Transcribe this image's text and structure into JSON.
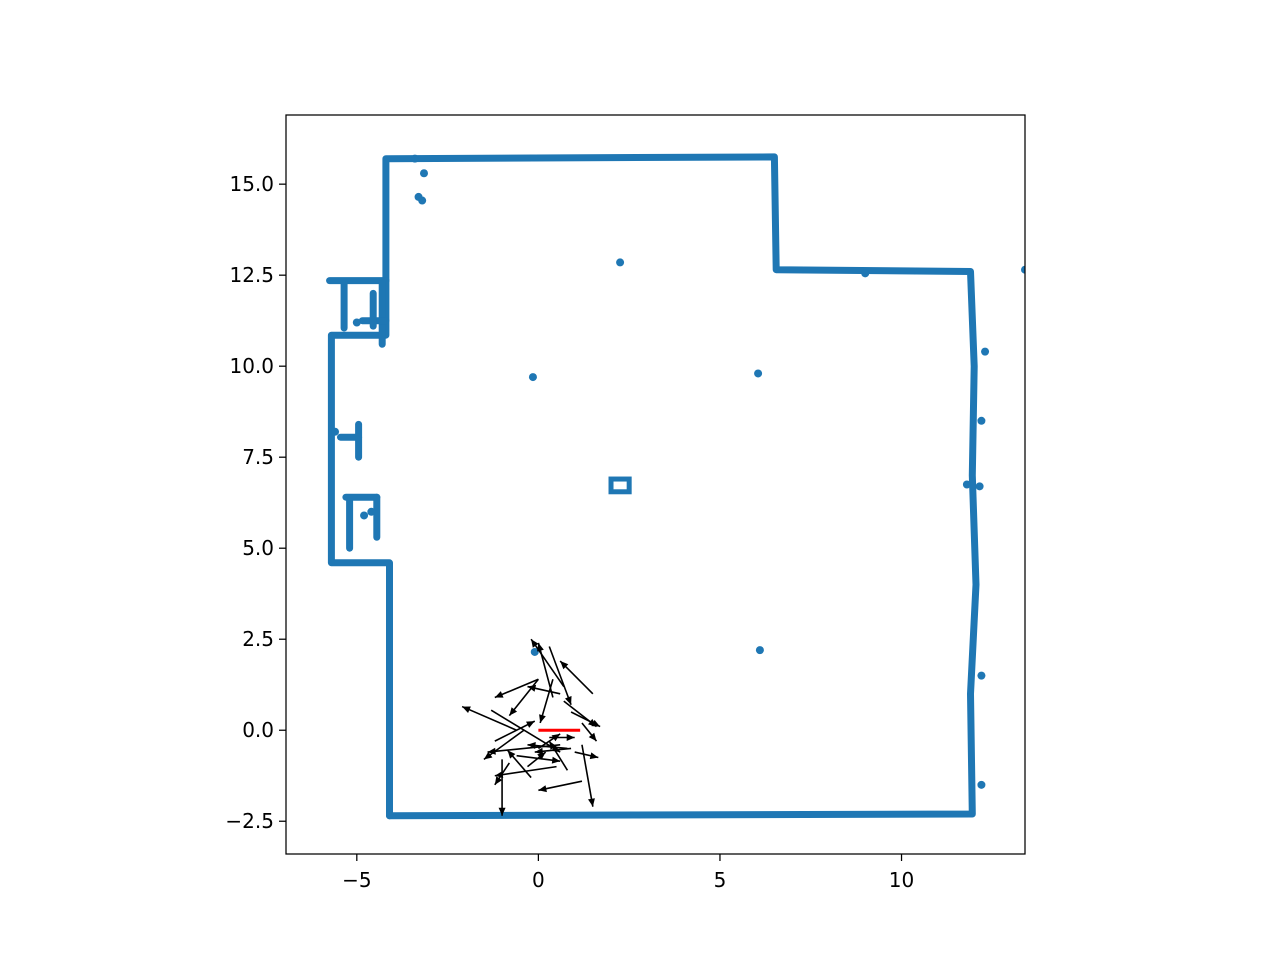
{
  "chart_data": {
    "type": "scatter",
    "title": "",
    "xlabel": "",
    "ylabel": "",
    "xlim": [
      -6.95,
      13.4
    ],
    "ylim": [
      -3.4,
      16.9
    ],
    "grid": false,
    "x_ticks": [
      -5,
      0,
      5,
      10
    ],
    "x_tick_labels": [
      "−5",
      "0",
      "5",
      "10"
    ],
    "y_ticks": [
      -2.5,
      0.0,
      2.5,
      5.0,
      7.5,
      10.0,
      12.5,
      15.0
    ],
    "y_tick_labels": [
      "−2.5",
      "0.0",
      "2.5",
      "5.0",
      "7.5",
      "10.0",
      "12.5",
      "15.0"
    ],
    "colors": {
      "points": "#1f77b4",
      "arrows": "#000000",
      "pose": "#ff0000",
      "axes": "#000000"
    },
    "series": [
      {
        "type": "scatter-walls",
        "polylines": [
          [
            [
              -4.1,
              -2.35
            ],
            [
              11.95,
              -2.3
            ],
            [
              11.9,
              1.0
            ],
            [
              12.05,
              4.0
            ],
            [
              11.95,
              7.0
            ],
            [
              12.0,
              10.0
            ],
            [
              11.9,
              12.6
            ],
            [
              6.55,
              12.65
            ],
            [
              6.5,
              15.75
            ],
            [
              -4.2,
              15.7
            ],
            [
              -4.2,
              12.35
            ]
          ],
          [
            [
              -4.2,
              12.35
            ],
            [
              -5.75,
              12.35
            ]
          ],
          [
            [
              -4.2,
              12.35
            ],
            [
              -4.2,
              10.85
            ],
            [
              -5.7,
              10.85
            ],
            [
              -5.7,
              4.6
            ],
            [
              -4.1,
              4.6
            ],
            [
              -4.1,
              -2.35
            ]
          ],
          [
            [
              -4.3,
              10.6
            ],
            [
              -4.3,
              12.3
            ]
          ],
          [
            [
              -5.35,
              11.05
            ],
            [
              -5.35,
              12.25
            ]
          ],
          [
            [
              -5.3,
              6.4
            ],
            [
              -4.45,
              6.4
            ]
          ],
          [
            [
              -4.45,
              5.3
            ],
            [
              -4.45,
              6.4
            ]
          ],
          [
            [
              -5.2,
              5.0
            ],
            [
              -5.2,
              6.3
            ]
          ],
          [
            [
              -5.45,
              8.05
            ],
            [
              -4.95,
              8.05
            ]
          ],
          [
            [
              -4.95,
              8.4
            ],
            [
              -4.95,
              7.5
            ]
          ],
          [
            [
              -4.85,
              11.25
            ],
            [
              -4.2,
              11.25
            ]
          ],
          [
            [
              -4.55,
              11.1
            ],
            [
              -4.55,
              12.0
            ]
          ]
        ],
        "blobs": [
          [
            -3.3,
            14.65
          ],
          [
            -3.2,
            14.55
          ],
          [
            -3.15,
            15.3
          ],
          [
            -3.4,
            15.7
          ],
          [
            -0.15,
            9.7
          ],
          [
            2.25,
            12.85
          ],
          [
            6.05,
            9.8
          ],
          [
            6.1,
            2.2
          ],
          [
            -0.1,
            2.15
          ],
          [
            -4.8,
            5.9
          ],
          [
            -4.6,
            6.0
          ],
          [
            -5.6,
            8.2
          ],
          [
            -5.0,
            11.2
          ],
          [
            12.2,
            1.5
          ],
          [
            12.15,
            6.7
          ],
          [
            12.2,
            8.5
          ],
          [
            12.3,
            10.4
          ],
          [
            12.2,
            -1.5
          ],
          [
            13.4,
            12.65
          ],
          [
            9.0,
            12.55
          ],
          [
            11.8,
            6.75
          ]
        ],
        "boxes": [
          [
            2.0,
            6.55,
            0.5,
            0.35
          ]
        ]
      },
      {
        "type": "quiver",
        "arrows": [
          [
            1.5,
            1.0,
            0.6,
            1.9
          ],
          [
            0.3,
            2.3,
            0.9,
            0.7
          ],
          [
            0.7,
            1.2,
            -0.2,
            2.5
          ],
          [
            0.6,
            1.0,
            -0.3,
            1.2
          ],
          [
            0.0,
            1.4,
            -1.2,
            0.9
          ],
          [
            0.0,
            1.4,
            -0.8,
            0.4
          ],
          [
            0.4,
            0.9,
            0.0,
            2.4
          ],
          [
            0.4,
            1.4,
            0.05,
            0.2
          ],
          [
            0.7,
            0.8,
            1.6,
            0.1
          ],
          [
            0.9,
            0.5,
            1.7,
            0.1
          ],
          [
            1.2,
            0.2,
            1.6,
            -0.3
          ],
          [
            -1.3,
            0.55,
            0.6,
            -0.6
          ],
          [
            -0.6,
            0.0,
            -2.1,
            0.65
          ],
          [
            -0.4,
            0.0,
            -1.5,
            -0.8
          ],
          [
            -1.2,
            -0.3,
            -0.1,
            0.25
          ],
          [
            0.3,
            -0.2,
            1.0,
            -0.2
          ],
          [
            0.6,
            -0.4,
            -1.4,
            -0.6
          ],
          [
            0.9,
            -0.5,
            -0.1,
            -0.6
          ],
          [
            1.0,
            -0.6,
            1.65,
            -0.75
          ],
          [
            -0.6,
            -0.7,
            0.6,
            -0.85
          ],
          [
            0.8,
            -1.1,
            0.3,
            -0.3
          ],
          [
            1.2,
            -0.4,
            1.5,
            -2.1
          ],
          [
            1.2,
            -1.4,
            0.0,
            -1.65
          ],
          [
            0.5,
            -1.0,
            -1.2,
            -1.25
          ],
          [
            -0.8,
            -0.9,
            -1.2,
            -1.5
          ],
          [
            -0.2,
            -1.3,
            -0.85,
            -0.55
          ],
          [
            -1.0,
            -0.8,
            -1.0,
            -2.35
          ],
          [
            0.0,
            -0.5,
            0.6,
            -0.1
          ],
          [
            -0.3,
            -1.0,
            0.2,
            -0.6
          ],
          [
            0.8,
            -0.5,
            -0.3,
            -0.4
          ]
        ]
      },
      {
        "type": "pose",
        "segment": [
          [
            0.0,
            0.0
          ],
          [
            1.15,
            0.0
          ]
        ]
      }
    ]
  }
}
